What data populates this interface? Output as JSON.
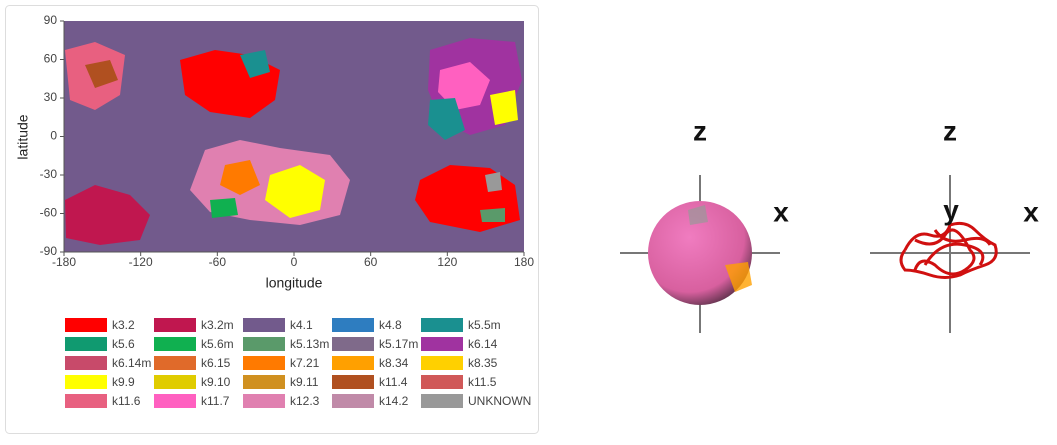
{
  "chart_data": {
    "type": "map",
    "xlabel": "longitude",
    "ylabel": "latitude",
    "xlim": [
      -180,
      180
    ],
    "xticks": [
      -180,
      -120,
      -60,
      0,
      60,
      120,
      180
    ],
    "ylim": [
      -90,
      90
    ],
    "yticks": [
      -90,
      -60,
      -30,
      0,
      30,
      60,
      90
    ],
    "background_color": "#725a8c",
    "legend_items": [
      {
        "name": "k3.2",
        "color": "#ff0000"
      },
      {
        "name": "k3.2m",
        "color": "#c0174f"
      },
      {
        "name": "k4.1",
        "color": "#725a8c"
      },
      {
        "name": "k4.8",
        "color": "#2e7dc0"
      },
      {
        "name": "k5.5m",
        "color": "#1a9090"
      },
      {
        "name": "k5.6",
        "color": "#109a70"
      },
      {
        "name": "k5.6m",
        "color": "#10b050"
      },
      {
        "name": "k5.13m",
        "color": "#5a9a6a"
      },
      {
        "name": "k5.17m",
        "color": "#7f6a8a"
      },
      {
        "name": "k6.14",
        "color": "#a033a0"
      },
      {
        "name": "k6.14m",
        "color": "#c84a6a"
      },
      {
        "name": "k6.15",
        "color": "#e06a2a"
      },
      {
        "name": "k7.21",
        "color": "#ff7a00"
      },
      {
        "name": "k8.34",
        "color": "#ffa000"
      },
      {
        "name": "k8.35",
        "color": "#ffd000"
      },
      {
        "name": "k9.9",
        "color": "#ffff00"
      },
      {
        "name": "k9.10",
        "color": "#e0cc00"
      },
      {
        "name": "k9.11",
        "color": "#d09020"
      },
      {
        "name": "k11.4",
        "color": "#b05020"
      },
      {
        "name": "k11.5",
        "color": "#d05858"
      },
      {
        "name": "k11.6",
        "color": "#e86080"
      },
      {
        "name": "k11.7",
        "color": "#ff60c0"
      },
      {
        "name": "k12.3",
        "color": "#e080b0"
      },
      {
        "name": "k14.2",
        "color": "#c08aa8"
      },
      {
        "name": "UNKNOWN",
        "color": "#999999"
      }
    ]
  },
  "viewer": {
    "views": [
      {
        "axes": [
          "z",
          "x"
        ]
      },
      {
        "axes": [
          "z",
          "y",
          "x"
        ]
      }
    ]
  }
}
